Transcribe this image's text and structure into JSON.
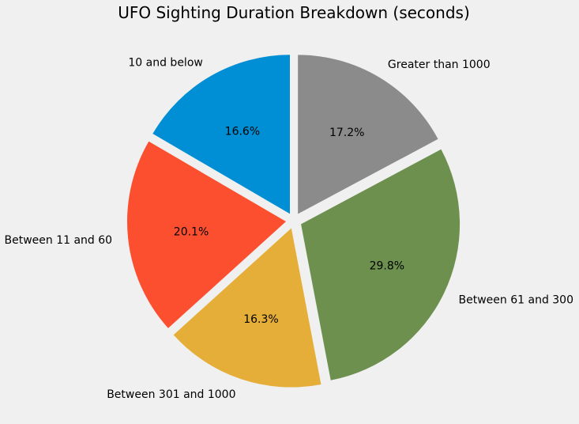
{
  "chart_data": {
    "type": "pie",
    "title": "UFO Sighting Duration Breakdown (seconds)",
    "start_angle_deg": 90,
    "direction": "counterclockwise",
    "explode": 0.05,
    "slices": [
      {
        "label": "10 and below",
        "value": 16.6,
        "pct_label": "16.6%",
        "color": "#008fd5"
      },
      {
        "label": "Between 11 and 60",
        "value": 20.1,
        "pct_label": "20.1%",
        "color": "#fc4f30"
      },
      {
        "label": "Between 301 and 1000",
        "value": 16.3,
        "pct_label": "16.3%",
        "color": "#e5ae38"
      },
      {
        "label": "Between 61 and 300",
        "value": 29.8,
        "pct_label": "29.8%",
        "color": "#6d904f"
      },
      {
        "label": "Greater than 1000",
        "value": 17.2,
        "pct_label": "17.2%",
        "color": "#8b8b8b"
      }
    ]
  }
}
